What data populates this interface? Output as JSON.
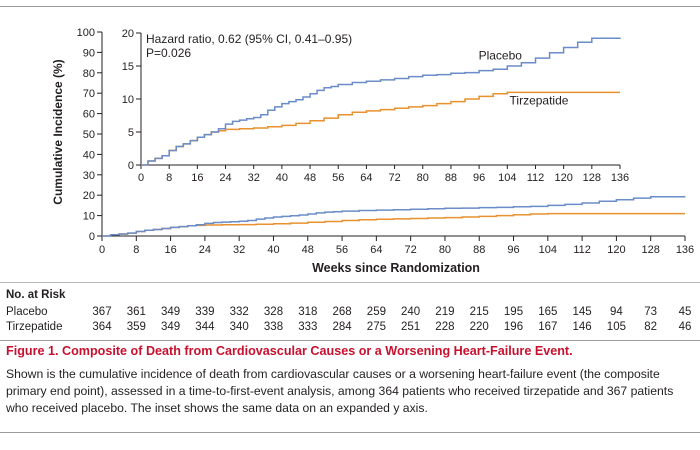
{
  "chart_data": {
    "type": "line",
    "xlabel": "Weeks since Randomization",
    "ylabel": "Cumulative Incidence (%)",
    "xlim": [
      0,
      136
    ],
    "ylim": [
      0,
      100
    ],
    "x_ticks": [
      0,
      8,
      16,
      24,
      32,
      40,
      48,
      56,
      64,
      72,
      80,
      88,
      96,
      104,
      112,
      120,
      128,
      136
    ],
    "y_ticks": [
      0,
      10,
      20,
      30,
      40,
      50,
      60,
      70,
      80,
      90,
      100
    ],
    "grid": false,
    "series": [
      {
        "name": "Placebo",
        "color": "#6a8cc8",
        "points": [
          [
            0,
            0
          ],
          [
            2,
            0.6
          ],
          [
            4,
            1.0
          ],
          [
            6,
            1.4
          ],
          [
            8,
            2.2
          ],
          [
            10,
            2.8
          ],
          [
            12,
            3.2
          ],
          [
            14,
            3.7
          ],
          [
            16,
            4.2
          ],
          [
            18,
            4.6
          ],
          [
            20,
            5.0
          ],
          [
            22,
            5.5
          ],
          [
            24,
            6.2
          ],
          [
            26,
            6.6
          ],
          [
            28,
            6.8
          ],
          [
            30,
            7.0
          ],
          [
            32,
            7.2
          ],
          [
            34,
            7.6
          ],
          [
            36,
            8.3
          ],
          [
            38,
            8.8
          ],
          [
            40,
            9.3
          ],
          [
            42,
            9.6
          ],
          [
            44,
            9.9
          ],
          [
            46,
            10.3
          ],
          [
            48,
            10.8
          ],
          [
            50,
            11.3
          ],
          [
            52,
            11.7
          ],
          [
            54,
            11.9
          ],
          [
            56,
            12.2
          ],
          [
            60,
            12.5
          ],
          [
            64,
            12.7
          ],
          [
            68,
            12.9
          ],
          [
            72,
            13.1
          ],
          [
            76,
            13.4
          ],
          [
            80,
            13.6
          ],
          [
            84,
            13.7
          ],
          [
            88,
            13.9
          ],
          [
            92,
            14.0
          ],
          [
            96,
            14.3
          ],
          [
            100,
            14.5
          ],
          [
            104,
            15.0
          ],
          [
            108,
            15.5
          ],
          [
            112,
            16.2
          ],
          [
            116,
            17.0
          ],
          [
            120,
            17.8
          ],
          [
            124,
            18.6
          ],
          [
            128,
            19.2
          ],
          [
            136,
            19.3
          ]
        ]
      },
      {
        "name": "Tirzepatide",
        "color": "#e8912e",
        "points": [
          [
            0,
            0
          ],
          [
            2,
            0.6
          ],
          [
            4,
            1.0
          ],
          [
            6,
            1.4
          ],
          [
            8,
            2.2
          ],
          [
            10,
            2.8
          ],
          [
            12,
            3.2
          ],
          [
            14,
            3.7
          ],
          [
            16,
            4.2
          ],
          [
            18,
            4.6
          ],
          [
            20,
            5.0
          ],
          [
            22,
            5.2
          ],
          [
            24,
            5.4
          ],
          [
            28,
            5.5
          ],
          [
            32,
            5.6
          ],
          [
            36,
            5.8
          ],
          [
            40,
            6.0
          ],
          [
            44,
            6.3
          ],
          [
            48,
            6.7
          ],
          [
            52,
            7.1
          ],
          [
            56,
            7.6
          ],
          [
            60,
            8.0
          ],
          [
            64,
            8.2
          ],
          [
            68,
            8.4
          ],
          [
            72,
            8.6
          ],
          [
            76,
            8.8
          ],
          [
            80,
            9.0
          ],
          [
            84,
            9.3
          ],
          [
            88,
            9.6
          ],
          [
            92,
            10.0
          ],
          [
            96,
            10.4
          ],
          [
            100,
            10.8
          ],
          [
            104,
            11.0
          ],
          [
            136,
            11.0
          ]
        ]
      }
    ],
    "inset": {
      "xlim": [
        0,
        136
      ],
      "ylim": [
        0,
        20
      ],
      "x_ticks": [
        0,
        8,
        16,
        24,
        32,
        40,
        48,
        56,
        64,
        72,
        80,
        88,
        96,
        104,
        112,
        120,
        128,
        136
      ],
      "y_ticks": [
        0,
        5,
        10,
        15,
        20
      ],
      "annotation_line1": "Hazard ratio, 0.62 (95% CI, 0.41–0.95)",
      "annotation_line2": "P=0.026",
      "label_placebo": "Placebo",
      "label_tirzepatide": "Tirzepatide"
    }
  },
  "risk_table": {
    "title": "No. at Risk",
    "weeks": [
      0,
      8,
      16,
      24,
      32,
      40,
      48,
      56,
      64,
      72,
      80,
      88,
      96,
      104,
      112,
      120,
      128,
      136
    ],
    "rows": [
      {
        "name": "Placebo",
        "values": [
          "367",
          "361",
          "349",
          "339",
          "332",
          "328",
          "318",
          "268",
          "259",
          "240",
          "219",
          "215",
          "195",
          "165",
          "145",
          "94",
          "73",
          "45"
        ]
      },
      {
        "name": "Tirzepatide",
        "values": [
          "364",
          "359",
          "349",
          "344",
          "340",
          "338",
          "333",
          "284",
          "275",
          "251",
          "228",
          "220",
          "196",
          "167",
          "146",
          "105",
          "82",
          "46"
        ]
      }
    ]
  },
  "caption": {
    "label": "Figure 1.",
    "title": "Composite of Death from Cardiovascular Causes or a Worsening Heart-Failure Event.",
    "body": "Shown is the cumulative incidence of death from cardiovascular causes or a worsening heart-failure event (the composite primary end point), assessed in a time-to-first-event analysis, among 364 patients who received tirzepatide and 367 patients who received placebo. The inset shows the same data on an expanded y axis."
  }
}
